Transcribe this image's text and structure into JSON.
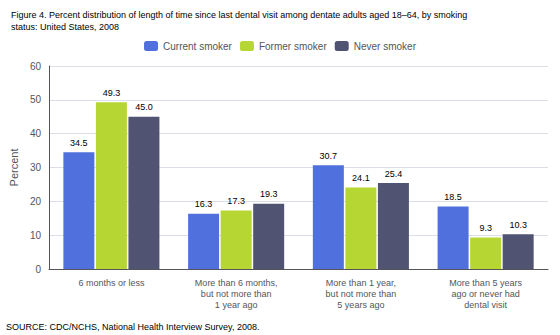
{
  "chart_data": {
    "type": "bar",
    "title": "Figure 4. Percent distribution of length of time since last dental visit among dentate adults aged 18–64, by smoking\nstatus: United States, 2008",
    "annotations": [
      "SOURCE: CDC/NCHS, National Health Interview Survey, 2008."
    ],
    "ylabel": "Percent",
    "categories": [
      "6 months or less",
      "More than 6 months,\nbut not more than\n1 year ago",
      "More than 1 year,\nbut not more than\n5 years ago",
      "More than 5 years\nago or never had\ndental visit"
    ],
    "series": [
      {
        "name": "Current smoker",
        "values": [
          34.5,
          16.3,
          30.7,
          18.5
        ]
      },
      {
        "name": "Former smoker",
        "values": [
          49.3,
          17.3,
          24.1,
          9.3
        ]
      },
      {
        "name": "Never smoker",
        "values": [
          45.0,
          19.3,
          25.4,
          10.3
        ],
        "value_labels": [
          "45.0",
          "19.3",
          "25.4",
          "10.3"
        ]
      }
    ],
    "ylim": [
      0,
      60
    ],
    "yticks": [
      0,
      10,
      20,
      30,
      40,
      50,
      60
    ],
    "grid": true,
    "legend": "top",
    "data_labels": true
  }
}
